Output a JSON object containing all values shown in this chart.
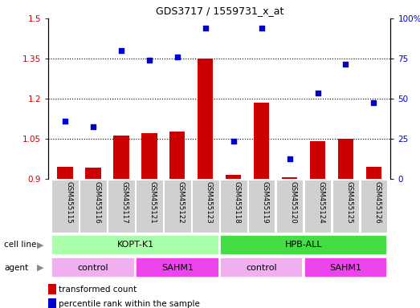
{
  "title": "GDS3717 / 1559731_x_at",
  "samples": [
    "GSM455115",
    "GSM455116",
    "GSM455117",
    "GSM455121",
    "GSM455122",
    "GSM455123",
    "GSM455118",
    "GSM455119",
    "GSM455120",
    "GSM455124",
    "GSM455125",
    "GSM455126"
  ],
  "bar_values": [
    0.945,
    0.94,
    1.06,
    1.07,
    1.075,
    1.35,
    0.915,
    1.185,
    0.905,
    1.04,
    1.05,
    0.945
  ],
  "scatter_values": [
    1.115,
    1.095,
    1.38,
    1.345,
    1.355,
    1.465,
    1.04,
    1.465,
    0.975,
    1.22,
    1.33,
    1.185
  ],
  "ylim_left": [
    0.9,
    1.5
  ],
  "ylim_right": [
    0,
    100
  ],
  "yticks_left": [
    0.9,
    1.05,
    1.2,
    1.35,
    1.5
  ],
  "yticks_right": [
    0,
    25,
    50,
    75,
    100
  ],
  "ytick_labels_left": [
    "0.9",
    "1.05",
    "1.2",
    "1.35",
    "1.5"
  ],
  "ytick_labels_right": [
    "0",
    "25",
    "50",
    "75",
    "100%"
  ],
  "bar_color": "#cc0000",
  "scatter_color": "#0000cc",
  "bar_bottom": 0.9,
  "dotted_lines": [
    1.05,
    1.2,
    1.35
  ],
  "cell_line_groups": [
    {
      "label": "KOPT-K1",
      "span": [
        0,
        5
      ]
    },
    {
      "label": "HPB-ALL",
      "span": [
        6,
        11
      ]
    }
  ],
  "cell_line_color": "#aaffaa",
  "cell_line_color2": "#44dd44",
  "agent_groups": [
    {
      "label": "control",
      "span": [
        0,
        2
      ],
      "color": "#f0b0f0"
    },
    {
      "label": "SAHM1",
      "span": [
        3,
        5
      ],
      "color": "#ee44ee"
    },
    {
      "label": "control",
      "span": [
        6,
        8
      ],
      "color": "#f0b0f0"
    },
    {
      "label": "SAHM1",
      "span": [
        9,
        11
      ],
      "color": "#ee44ee"
    }
  ],
  "sample_bg_color": "#d0d0d0",
  "bg_color": "#ffffff"
}
